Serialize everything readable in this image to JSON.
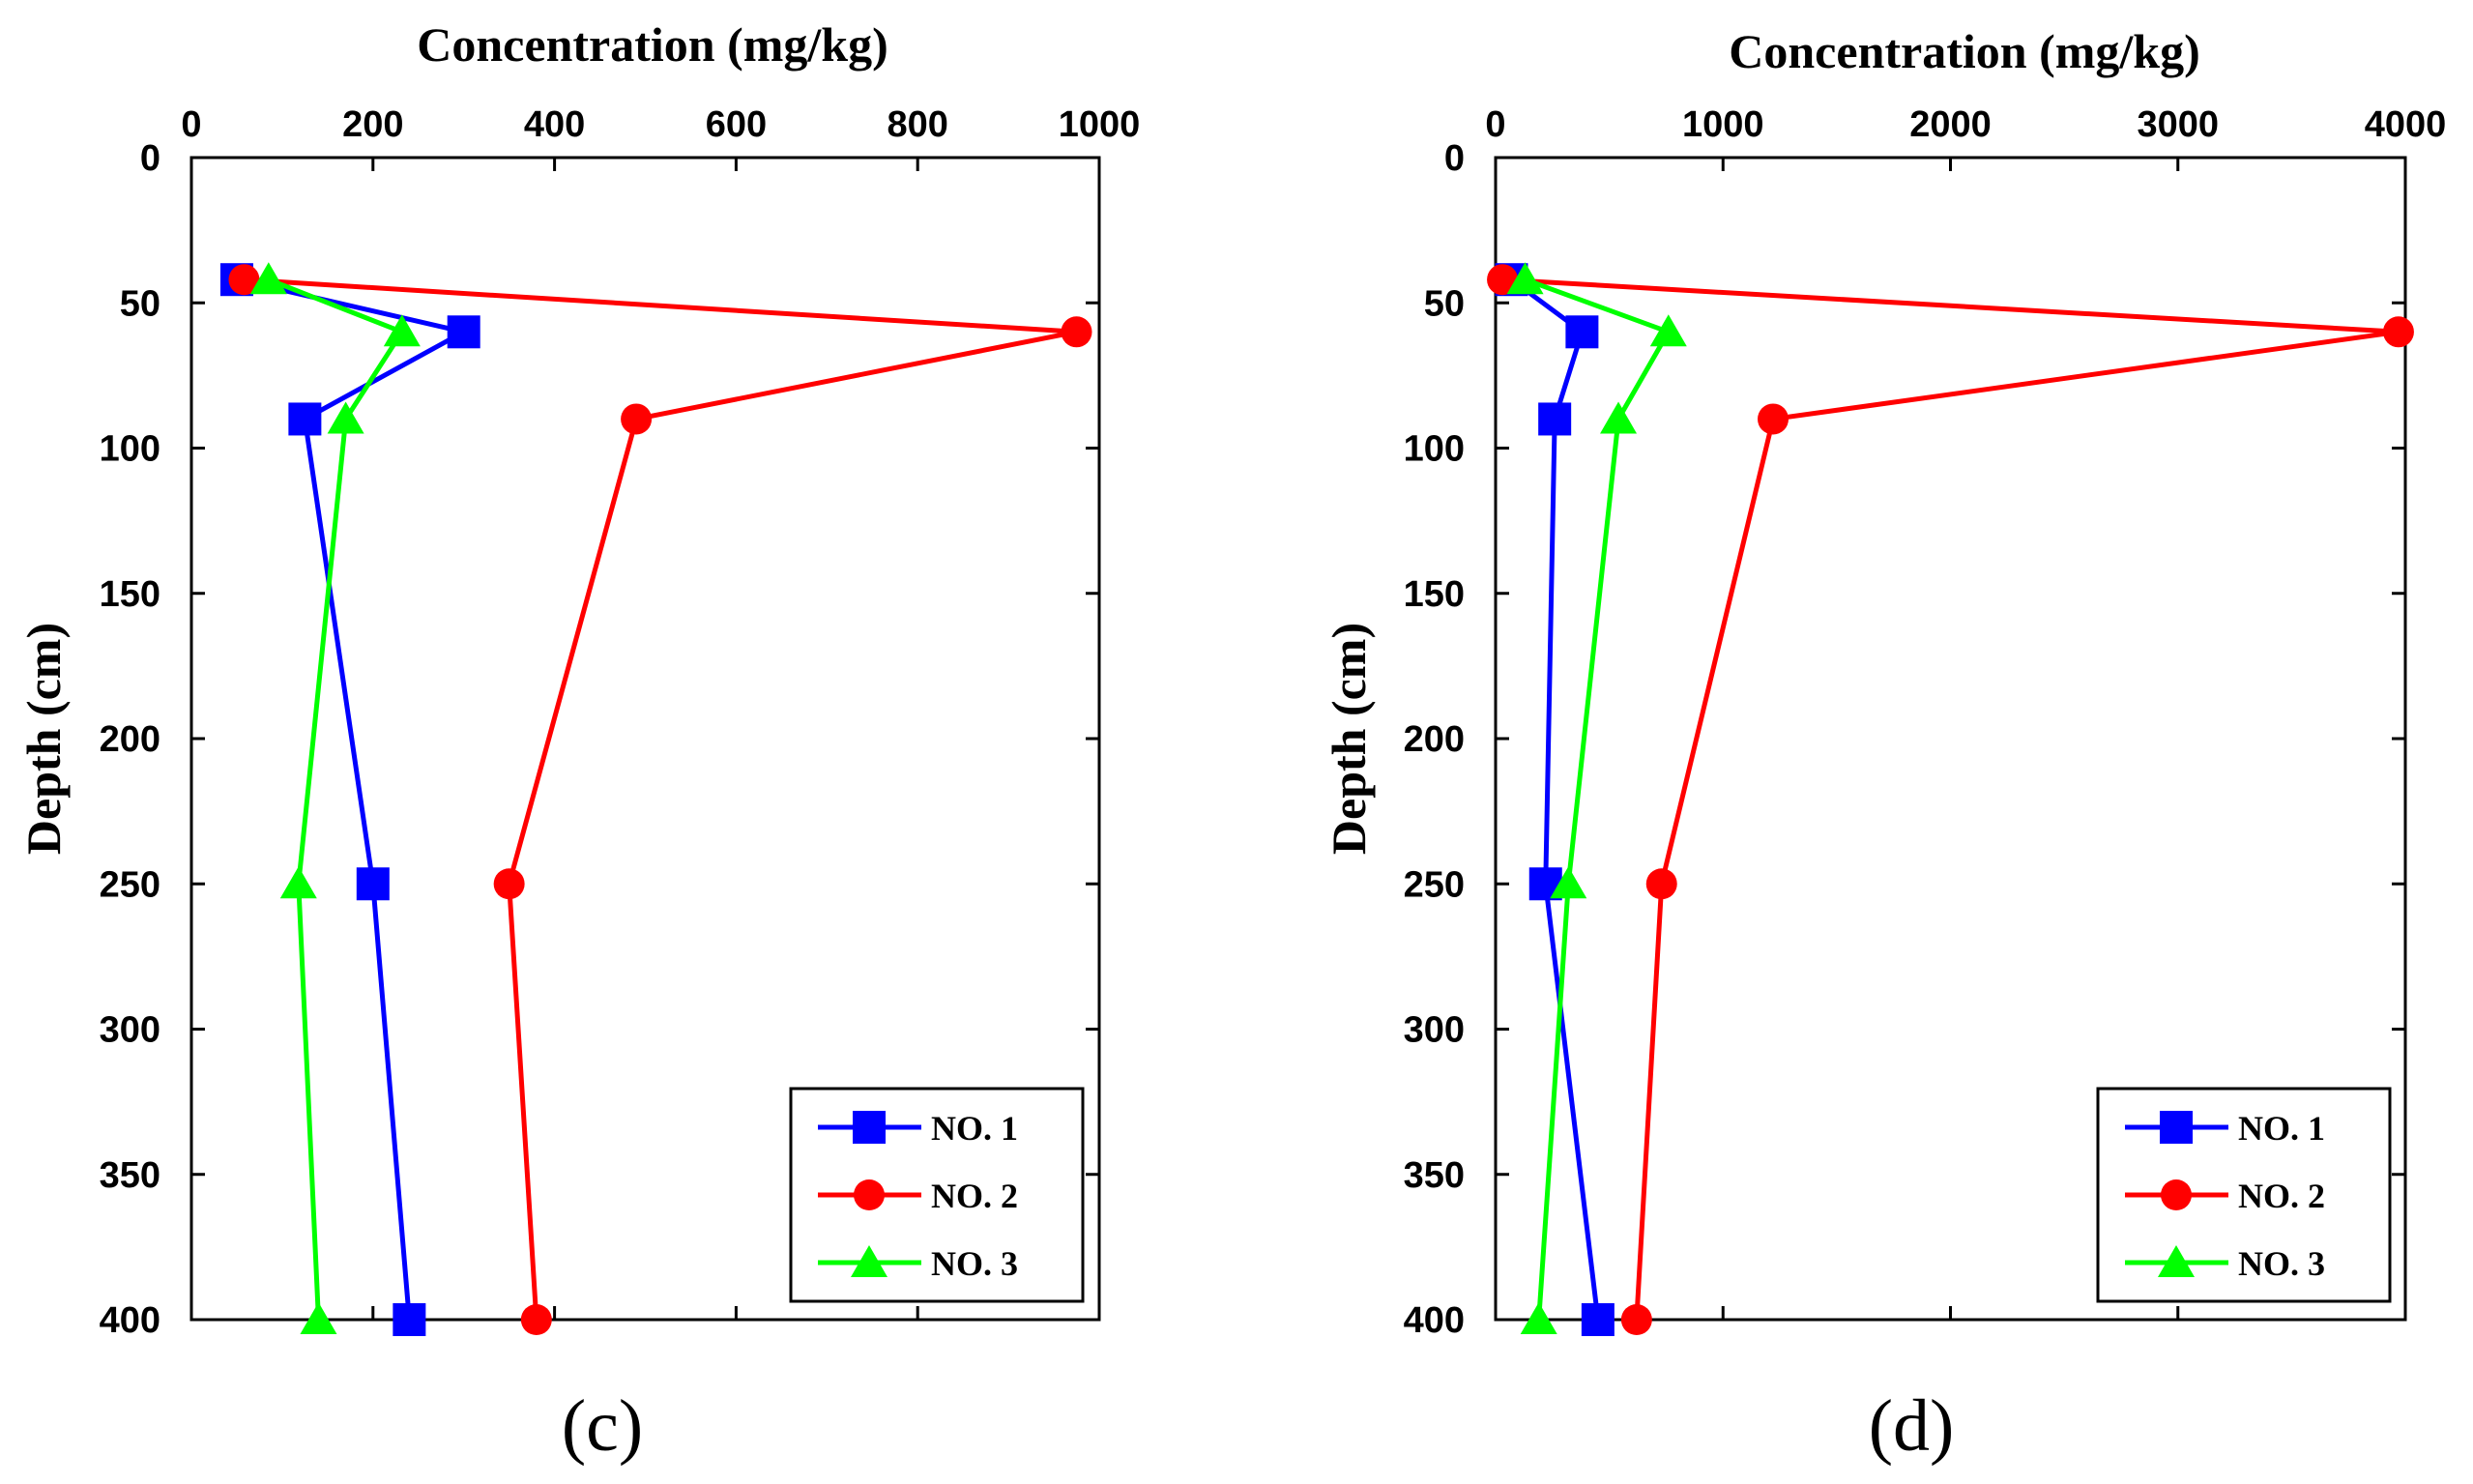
{
  "figure": {
    "background": "#ffffff"
  },
  "chart_data": [
    {
      "type": "line",
      "panel_label": "(c)",
      "xlabel": "Concentration (mg/kg)",
      "ylabel": "Depth (cm)",
      "xaxis_position": "top",
      "yaxis_inverted": true,
      "xlim": [
        0,
        1000
      ],
      "ylim": [
        0,
        400
      ],
      "xticks": [
        0,
        200,
        400,
        600,
        800,
        1000
      ],
      "yticks": [
        0,
        50,
        100,
        150,
        200,
        250,
        300,
        350,
        400
      ],
      "grid": false,
      "legend_position": "bottom-right",
      "series": [
        {
          "name": "NO. 1",
          "color": "#0000ff",
          "marker": "square",
          "x": [
            50,
            300,
            125,
            200,
            240
          ],
          "y": [
            42,
            60,
            90,
            250,
            400
          ]
        },
        {
          "name": "NO. 2",
          "color": "#ff0000",
          "marker": "circle",
          "x": [
            58,
            975,
            490,
            350,
            380
          ],
          "y": [
            42,
            60,
            90,
            250,
            400
          ]
        },
        {
          "name": "NO. 3",
          "color": "#00ff00",
          "marker": "triangle",
          "x": [
            85,
            232,
            170,
            118,
            140
          ],
          "y": [
            42,
            60,
            90,
            250,
            400
          ]
        }
      ]
    },
    {
      "type": "line",
      "panel_label": "(d)",
      "xlabel": "Concentration (mg/kg)",
      "ylabel": "Depth (cm)",
      "xaxis_position": "top",
      "yaxis_inverted": true,
      "xlim": [
        0,
        4000
      ],
      "ylim": [
        0,
        400
      ],
      "xticks": [
        0,
        1000,
        2000,
        3000,
        4000
      ],
      "yticks": [
        0,
        50,
        100,
        150,
        200,
        250,
        300,
        350,
        400
      ],
      "grid": false,
      "legend_position": "bottom-right",
      "series": [
        {
          "name": "NO. 1",
          "color": "#0000ff",
          "marker": "square",
          "x": [
            70,
            380,
            260,
            220,
            450
          ],
          "y": [
            42,
            60,
            90,
            250,
            400
          ]
        },
        {
          "name": "NO. 2",
          "color": "#ff0000",
          "marker": "circle",
          "x": [
            30,
            3970,
            1220,
            730,
            620
          ],
          "y": [
            42,
            60,
            90,
            250,
            400
          ]
        },
        {
          "name": "NO. 3",
          "color": "#00ff00",
          "marker": "triangle",
          "x": [
            130,
            760,
            540,
            320,
            190
          ],
          "y": [
            42,
            60,
            90,
            250,
            400
          ]
        }
      ]
    }
  ]
}
